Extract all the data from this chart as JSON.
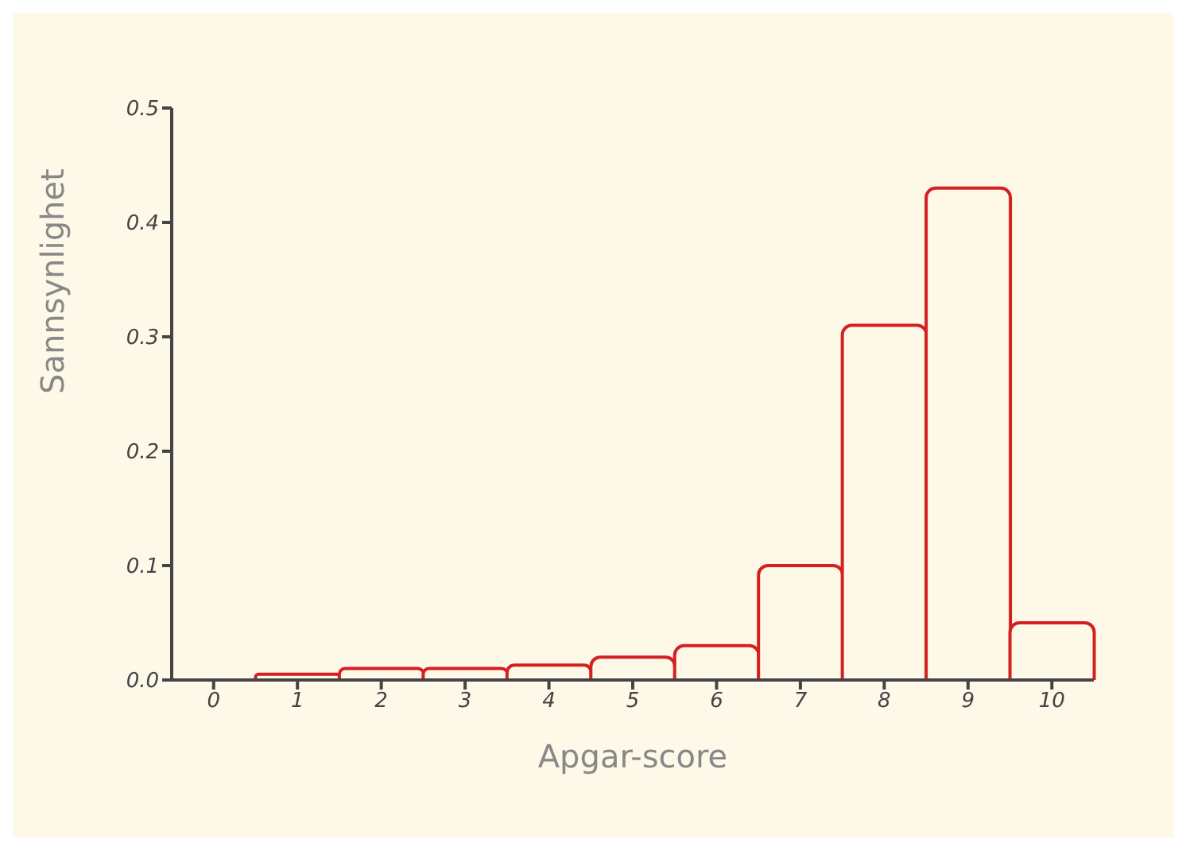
{
  "chart_data": {
    "type": "bar",
    "xlabel": "Apgar-score",
    "ylabel": "Sannsynlighet",
    "categories": [
      "0",
      "1",
      "2",
      "3",
      "4",
      "5",
      "6",
      "7",
      "8",
      "9",
      "10"
    ],
    "values": [
      0,
      0.005,
      0.01,
      0.01,
      0.013,
      0.02,
      0.03,
      0.1,
      0.31,
      0.43,
      0.05
    ],
    "color": "#d42020",
    "ylim": [
      0,
      0.5
    ],
    "yticks": [
      {
        "value": 0,
        "label": "0.0"
      },
      0.1,
      0.2,
      0.3,
      0.4,
      0.5
    ],
    "grid": false
  }
}
